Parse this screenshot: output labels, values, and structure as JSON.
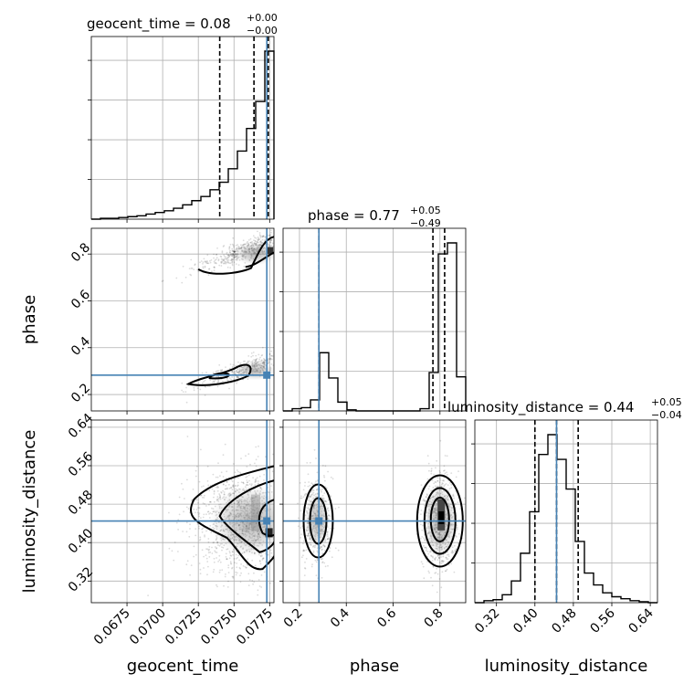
{
  "chart_data": {
    "type": "corner",
    "parameters": [
      "geocent_time",
      "phase",
      "luminosity_distance"
    ],
    "truths": {
      "geocent_time": 0.0773,
      "phase": 0.283,
      "luminosity_distance": 0.445
    },
    "titles": [
      {
        "param": "geocent_time",
        "text": "geocent_time = 0.08",
        "sup": "+0.00",
        "sub": "−0.00"
      },
      {
        "param": "phase",
        "text": "phase = 0.77",
        "sup": "+0.05",
        "sub": "−0.49"
      },
      {
        "param": "luminosity_distance",
        "text": "luminosity_distance = 0.44",
        "sup": "+0.05",
        "sub": "−0.04"
      }
    ],
    "axes": {
      "geocent_time": {
        "range": [
          0.065,
          0.0778
        ],
        "ticks": [
          0.0675,
          0.07,
          0.0725,
          0.075,
          0.0775
        ],
        "tick_labels": [
          "0.0675",
          "0.0700",
          "0.0725",
          "0.0750",
          "0.0775"
        ],
        "label": "geocent_time"
      },
      "phase": {
        "range": [
          0.13,
          0.91
        ],
        "x_ticks": [
          0.2,
          0.4,
          0.6,
          0.8
        ],
        "x_tick_labels": [
          "0.2",
          "0.4",
          "0.6",
          "0.8"
        ],
        "y_ticks": [
          0.2,
          0.4,
          0.6,
          0.8
        ],
        "y_tick_labels": [
          "0.2",
          "0.4",
          "0.6",
          "0.8"
        ],
        "label": "phase"
      },
      "luminosity_distance": {
        "range": [
          0.275,
          0.655
        ],
        "ticks": [
          0.32,
          0.4,
          0.48,
          0.56,
          0.64
        ],
        "tick_labels": [
          "0.32",
          "0.40",
          "0.48",
          "0.56",
          "0.64"
        ],
        "label": "luminosity_distance"
      }
    },
    "histograms": {
      "geocent_time": {
        "edges_range": [
          0.065,
          0.0778
        ],
        "bins": 20,
        "counts": [
          0,
          1,
          1,
          2,
          3,
          4,
          6,
          8,
          10,
          13,
          17,
          22,
          27,
          35,
          44,
          60,
          81,
          108,
          140,
          200
        ],
        "quantiles": [
          0.074,
          0.0764,
          0.0774
        ]
      },
      "phase": {
        "edges_range": [
          0.13,
          0.91
        ],
        "bins": 20,
        "counts": [
          0,
          2,
          3,
          10,
          53,
          30,
          8,
          1,
          0,
          0,
          0,
          0,
          0,
          0,
          0,
          2,
          35,
          143,
          153,
          31
        ],
        "quantiles": [
          0.283,
          0.77,
          0.82
        ]
      },
      "luminosity_distance": {
        "edges_range": [
          0.275,
          0.655
        ],
        "bins": 20,
        "counts": [
          0,
          2,
          3,
          8,
          22,
          50,
          92,
          150,
          170,
          145,
          115,
          62,
          30,
          18,
          10,
          6,
          4,
          2,
          1,
          0
        ],
        "quantiles": [
          0.4,
          0.445,
          0.49
        ]
      }
    },
    "grid": true
  }
}
